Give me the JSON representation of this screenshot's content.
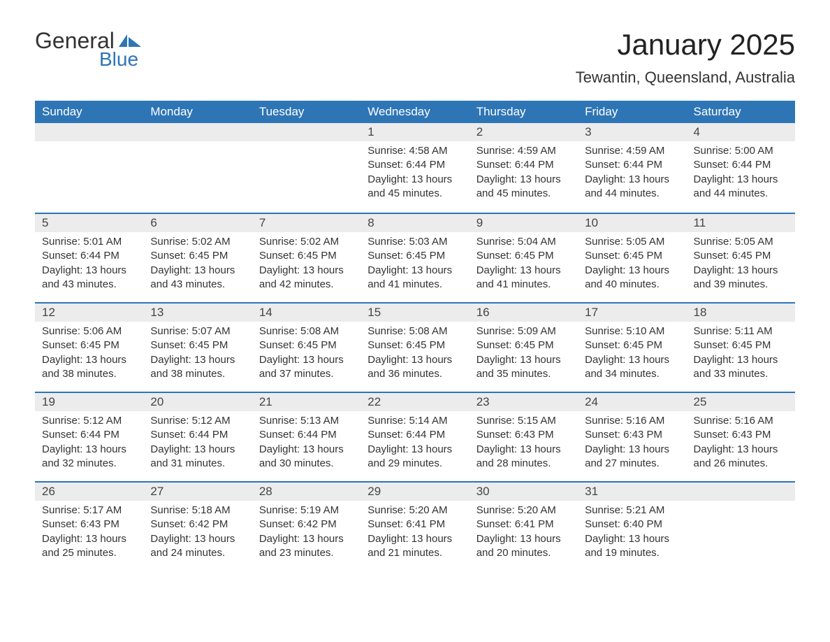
{
  "brand": {
    "general": "General",
    "blue": "Blue",
    "accent_color": "#2e75b6"
  },
  "title": "January 2025",
  "location": "Tewantin, Queensland, Australia",
  "colors": {
    "header_bg": "#2e75b6",
    "header_text": "#ffffff",
    "daynum_bg": "#ececec",
    "row_divider": "#2e75b6",
    "text": "#333333",
    "background": "#ffffff"
  },
  "typography": {
    "title_fontsize": 42,
    "location_fontsize": 22,
    "header_fontsize": 17,
    "body_fontsize": 15
  },
  "day_headers": [
    "Sunday",
    "Monday",
    "Tuesday",
    "Wednesday",
    "Thursday",
    "Friday",
    "Saturday"
  ],
  "weeks": [
    [
      {
        "empty": true
      },
      {
        "empty": true
      },
      {
        "empty": true
      },
      {
        "day": "1",
        "sunrise": "Sunrise: 4:58 AM",
        "sunset": "Sunset: 6:44 PM",
        "daylight1": "Daylight: 13 hours",
        "daylight2": "and 45 minutes."
      },
      {
        "day": "2",
        "sunrise": "Sunrise: 4:59 AM",
        "sunset": "Sunset: 6:44 PM",
        "daylight1": "Daylight: 13 hours",
        "daylight2": "and 45 minutes."
      },
      {
        "day": "3",
        "sunrise": "Sunrise: 4:59 AM",
        "sunset": "Sunset: 6:44 PM",
        "daylight1": "Daylight: 13 hours",
        "daylight2": "and 44 minutes."
      },
      {
        "day": "4",
        "sunrise": "Sunrise: 5:00 AM",
        "sunset": "Sunset: 6:44 PM",
        "daylight1": "Daylight: 13 hours",
        "daylight2": "and 44 minutes."
      }
    ],
    [
      {
        "day": "5",
        "sunrise": "Sunrise: 5:01 AM",
        "sunset": "Sunset: 6:44 PM",
        "daylight1": "Daylight: 13 hours",
        "daylight2": "and 43 minutes."
      },
      {
        "day": "6",
        "sunrise": "Sunrise: 5:02 AM",
        "sunset": "Sunset: 6:45 PM",
        "daylight1": "Daylight: 13 hours",
        "daylight2": "and 43 minutes."
      },
      {
        "day": "7",
        "sunrise": "Sunrise: 5:02 AM",
        "sunset": "Sunset: 6:45 PM",
        "daylight1": "Daylight: 13 hours",
        "daylight2": "and 42 minutes."
      },
      {
        "day": "8",
        "sunrise": "Sunrise: 5:03 AM",
        "sunset": "Sunset: 6:45 PM",
        "daylight1": "Daylight: 13 hours",
        "daylight2": "and 41 minutes."
      },
      {
        "day": "9",
        "sunrise": "Sunrise: 5:04 AM",
        "sunset": "Sunset: 6:45 PM",
        "daylight1": "Daylight: 13 hours",
        "daylight2": "and 41 minutes."
      },
      {
        "day": "10",
        "sunrise": "Sunrise: 5:05 AM",
        "sunset": "Sunset: 6:45 PM",
        "daylight1": "Daylight: 13 hours",
        "daylight2": "and 40 minutes."
      },
      {
        "day": "11",
        "sunrise": "Sunrise: 5:05 AM",
        "sunset": "Sunset: 6:45 PM",
        "daylight1": "Daylight: 13 hours",
        "daylight2": "and 39 minutes."
      }
    ],
    [
      {
        "day": "12",
        "sunrise": "Sunrise: 5:06 AM",
        "sunset": "Sunset: 6:45 PM",
        "daylight1": "Daylight: 13 hours",
        "daylight2": "and 38 minutes."
      },
      {
        "day": "13",
        "sunrise": "Sunrise: 5:07 AM",
        "sunset": "Sunset: 6:45 PM",
        "daylight1": "Daylight: 13 hours",
        "daylight2": "and 38 minutes."
      },
      {
        "day": "14",
        "sunrise": "Sunrise: 5:08 AM",
        "sunset": "Sunset: 6:45 PM",
        "daylight1": "Daylight: 13 hours",
        "daylight2": "and 37 minutes."
      },
      {
        "day": "15",
        "sunrise": "Sunrise: 5:08 AM",
        "sunset": "Sunset: 6:45 PM",
        "daylight1": "Daylight: 13 hours",
        "daylight2": "and 36 minutes."
      },
      {
        "day": "16",
        "sunrise": "Sunrise: 5:09 AM",
        "sunset": "Sunset: 6:45 PM",
        "daylight1": "Daylight: 13 hours",
        "daylight2": "and 35 minutes."
      },
      {
        "day": "17",
        "sunrise": "Sunrise: 5:10 AM",
        "sunset": "Sunset: 6:45 PM",
        "daylight1": "Daylight: 13 hours",
        "daylight2": "and 34 minutes."
      },
      {
        "day": "18",
        "sunrise": "Sunrise: 5:11 AM",
        "sunset": "Sunset: 6:45 PM",
        "daylight1": "Daylight: 13 hours",
        "daylight2": "and 33 minutes."
      }
    ],
    [
      {
        "day": "19",
        "sunrise": "Sunrise: 5:12 AM",
        "sunset": "Sunset: 6:44 PM",
        "daylight1": "Daylight: 13 hours",
        "daylight2": "and 32 minutes."
      },
      {
        "day": "20",
        "sunrise": "Sunrise: 5:12 AM",
        "sunset": "Sunset: 6:44 PM",
        "daylight1": "Daylight: 13 hours",
        "daylight2": "and 31 minutes."
      },
      {
        "day": "21",
        "sunrise": "Sunrise: 5:13 AM",
        "sunset": "Sunset: 6:44 PM",
        "daylight1": "Daylight: 13 hours",
        "daylight2": "and 30 minutes."
      },
      {
        "day": "22",
        "sunrise": "Sunrise: 5:14 AM",
        "sunset": "Sunset: 6:44 PM",
        "daylight1": "Daylight: 13 hours",
        "daylight2": "and 29 minutes."
      },
      {
        "day": "23",
        "sunrise": "Sunrise: 5:15 AM",
        "sunset": "Sunset: 6:43 PM",
        "daylight1": "Daylight: 13 hours",
        "daylight2": "and 28 minutes."
      },
      {
        "day": "24",
        "sunrise": "Sunrise: 5:16 AM",
        "sunset": "Sunset: 6:43 PM",
        "daylight1": "Daylight: 13 hours",
        "daylight2": "and 27 minutes."
      },
      {
        "day": "25",
        "sunrise": "Sunrise: 5:16 AM",
        "sunset": "Sunset: 6:43 PM",
        "daylight1": "Daylight: 13 hours",
        "daylight2": "and 26 minutes."
      }
    ],
    [
      {
        "day": "26",
        "sunrise": "Sunrise: 5:17 AM",
        "sunset": "Sunset: 6:43 PM",
        "daylight1": "Daylight: 13 hours",
        "daylight2": "and 25 minutes."
      },
      {
        "day": "27",
        "sunrise": "Sunrise: 5:18 AM",
        "sunset": "Sunset: 6:42 PM",
        "daylight1": "Daylight: 13 hours",
        "daylight2": "and 24 minutes."
      },
      {
        "day": "28",
        "sunrise": "Sunrise: 5:19 AM",
        "sunset": "Sunset: 6:42 PM",
        "daylight1": "Daylight: 13 hours",
        "daylight2": "and 23 minutes."
      },
      {
        "day": "29",
        "sunrise": "Sunrise: 5:20 AM",
        "sunset": "Sunset: 6:41 PM",
        "daylight1": "Daylight: 13 hours",
        "daylight2": "and 21 minutes."
      },
      {
        "day": "30",
        "sunrise": "Sunrise: 5:20 AM",
        "sunset": "Sunset: 6:41 PM",
        "daylight1": "Daylight: 13 hours",
        "daylight2": "and 20 minutes."
      },
      {
        "day": "31",
        "sunrise": "Sunrise: 5:21 AM",
        "sunset": "Sunset: 6:40 PM",
        "daylight1": "Daylight: 13 hours",
        "daylight2": "and 19 minutes."
      },
      {
        "empty": true,
        "trailing": true
      }
    ]
  ]
}
